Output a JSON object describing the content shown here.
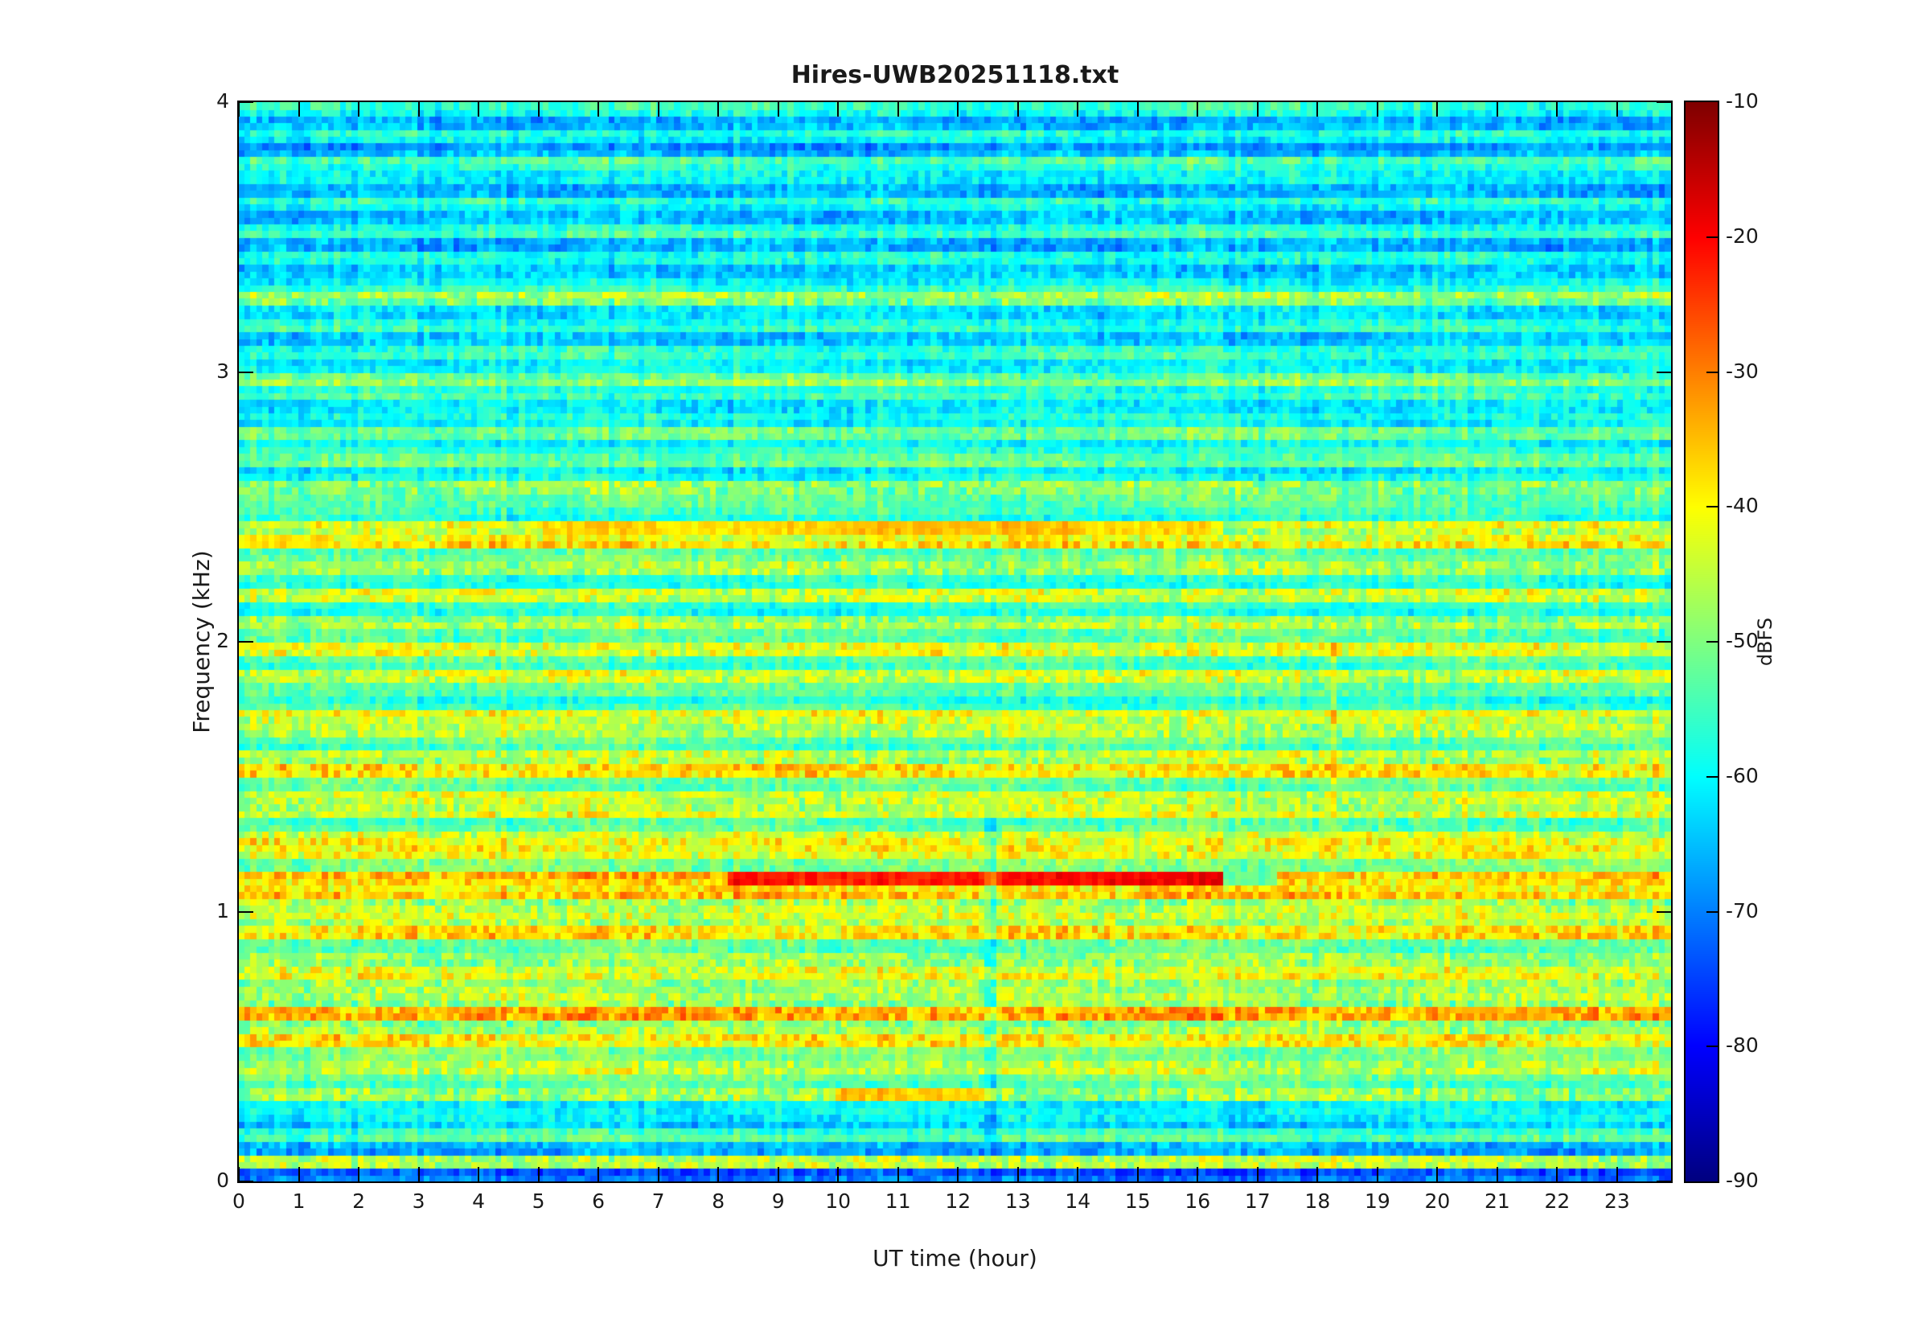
{
  "figure": {
    "background": "#ffffff",
    "text_color": "#1a1a1a",
    "axis_color": "#000000"
  },
  "chart_data": {
    "type": "heatmap",
    "title": "Hires-UWB20251118.txt",
    "xlabel": "UT time (hour)",
    "ylabel": "Frequency (kHz)",
    "colorbar_label": "dBFS",
    "colormap": "jet",
    "clim": [
      -90,
      -10
    ],
    "x_range": [
      0,
      23.9
    ],
    "y_range": [
      0,
      4
    ],
    "x_ticks": [
      0,
      1,
      2,
      3,
      4,
      5,
      6,
      7,
      8,
      9,
      10,
      11,
      12,
      13,
      14,
      15,
      16,
      17,
      18,
      19,
      20,
      21,
      22,
      23
    ],
    "y_ticks": [
      0,
      1,
      2,
      3,
      4
    ],
    "colorbar_ticks": [
      -10,
      -20,
      -30,
      -40,
      -50,
      -60,
      -70,
      -80,
      -90
    ],
    "freq_bin_khz": 0.05,
    "base_levels_dbfs": [
      -72,
      -45,
      -66,
      -54,
      -62,
      -60,
      -48,
      -52,
      -45,
      -50,
      -39,
      -48,
      -33,
      -47,
      -48,
      -42,
      -48,
      -52,
      -38,
      -45,
      -46,
      -37,
      -36,
      -50,
      -41,
      -42,
      -53,
      -44,
      -44,
      -52,
      -38,
      -46,
      -53,
      -46,
      -43,
      -56,
      -52,
      -44,
      -54,
      -42,
      -53,
      -47,
      -57,
      -44,
      -57,
      -47,
      -52,
      -40,
      -44,
      -56,
      -52,
      -49,
      -60,
      -52,
      -58,
      -51,
      -59,
      -61,
      -56,
      -50,
      -60,
      -56,
      -64,
      -57,
      -62,
      -48,
      -58,
      -64,
      -58,
      -66,
      -56,
      -65,
      -58,
      -66,
      -60,
      -55,
      -67,
      -59,
      -66,
      -57
    ],
    "events": [
      {
        "freq_khz": 1.125,
        "start_hour": 8.2,
        "end_hour": 16.4,
        "level_dbfs": -21,
        "note": "strong tone segment"
      },
      {
        "freq_khz": 1.125,
        "start_hour": 16.4,
        "end_hour": 17.3,
        "level_dbfs": -52,
        "note": "quiet gap after tone"
      },
      {
        "freq_khz": 2.425,
        "start_hour": 5.1,
        "end_hour": 16.2,
        "level_dbfs": -36,
        "note": "elevated band segment"
      },
      {
        "freq_khz": 2.375,
        "start_hour": 0.0,
        "end_hour": 1.6,
        "level_dbfs": -36,
        "note": "elevated band segment"
      },
      {
        "freq_khz": 0.35,
        "start_hour": 10.0,
        "end_hour": 12.6,
        "level_dbfs": -36,
        "note": "elevated band segment"
      }
    ],
    "time_features": [
      {
        "hour": 12.55,
        "delta_dbfs": -7,
        "freq_min_khz": 0.3,
        "freq_max_khz": 2.7,
        "note": "brief quiet column"
      },
      {
        "hour": 18.3,
        "delta_dbfs": 6,
        "freq_min_khz": 2.8,
        "freq_max_khz": 4.0,
        "note": "bright column in high band"
      }
    ]
  }
}
